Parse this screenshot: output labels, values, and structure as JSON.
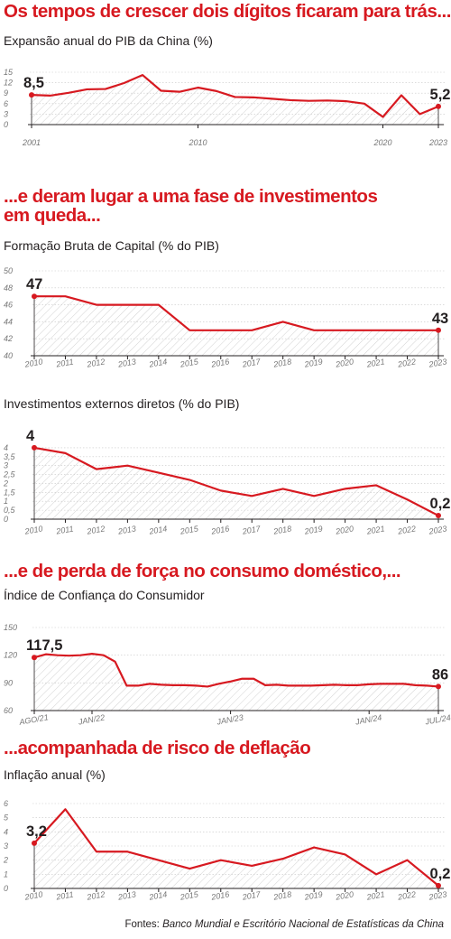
{
  "headlines": {
    "h1": "Os tempos de crescer dois dígitos ficaram para trás...",
    "h2a": "...e deram lugar a uma fase de investimentos",
    "h2b": "em queda...",
    "h3": "...e de perda de força no consumo doméstico,...",
    "h4": "...acompanhada de risco de deflação"
  },
  "source": {
    "prefix": "Fontes: ",
    "names": "Banco Mundial e Escritório Nacional de Estatísticas da China"
  },
  "colors": {
    "line": "#d71920",
    "axis": "#231f20",
    "grid": "#c8c8c8",
    "hatch": "#d2d2d2"
  },
  "chart_data": [
    {
      "type": "area",
      "title": "Expansão anual do PIB da China (%)",
      "x": [
        2001,
        2002,
        2003,
        2004,
        2005,
        2006,
        2007,
        2008,
        2009,
        2010,
        2011,
        2012,
        2013,
        2014,
        2015,
        2016,
        2017,
        2018,
        2019,
        2020,
        2021,
        2022,
        2023
      ],
      "values": [
        8.5,
        8.3,
        9.1,
        10.1,
        10.2,
        11.9,
        14.2,
        9.7,
        9.4,
        10.6,
        9.6,
        7.9,
        7.8,
        7.4,
        7.0,
        6.8,
        6.9,
        6.7,
        6.0,
        2.2,
        8.4,
        3.0,
        5.2
      ],
      "x_tick_labels": [
        "2001",
        "2010",
        "2020",
        "2023"
      ],
      "y_ticks": [
        "0",
        "3",
        "6",
        "9",
        "12",
        "15"
      ],
      "ylim": [
        0,
        15
      ],
      "start_label": "8,5",
      "end_label": "5,2",
      "grid": true
    },
    {
      "type": "area",
      "title": "Formação Bruta de Capital (% do PIB)",
      "x": [
        2010,
        2011,
        2012,
        2013,
        2014,
        2015,
        2016,
        2017,
        2018,
        2019,
        2020,
        2021,
        2022,
        2023
      ],
      "values": [
        47,
        47,
        46,
        46,
        46,
        43,
        43,
        43,
        44,
        43,
        43,
        43,
        43,
        43
      ],
      "x_tick_labels": [
        "2010",
        "2011",
        "2012",
        "2013",
        "2014",
        "2015",
        "2016",
        "2017",
        "2018",
        "2019",
        "2020",
        "2021",
        "2022",
        "2023"
      ],
      "y_ticks": [
        "40",
        "42",
        "44",
        "46",
        "48",
        "50"
      ],
      "ylim": [
        40,
        50
      ],
      "start_label": "47",
      "end_label": "43",
      "grid": true
    },
    {
      "type": "area",
      "title": "Investimentos externos diretos (% do PIB)",
      "x": [
        2010,
        2011,
        2012,
        2013,
        2014,
        2015,
        2016,
        2017,
        2018,
        2019,
        2020,
        2021,
        2022,
        2023
      ],
      "values": [
        4.0,
        3.7,
        2.8,
        3.0,
        2.6,
        2.2,
        1.6,
        1.3,
        1.7,
        1.3,
        1.7,
        1.9,
        1.1,
        0.2
      ],
      "x_tick_labels": [
        "2010",
        "2011",
        "2012",
        "2013",
        "2014",
        "2015",
        "2016",
        "2017",
        "2018",
        "2019",
        "2020",
        "2021",
        "2022",
        "2023"
      ],
      "y_ticks": [
        "0",
        "0,5",
        "1",
        "1,5",
        "2",
        "2,5",
        "3",
        "3,5",
        "4"
      ],
      "ylim": [
        0,
        4.3
      ],
      "start_label": "4",
      "end_label": "0,2",
      "grid": true
    },
    {
      "type": "area",
      "title": "Índice de Confiança do Consumidor",
      "x": [
        "AGO/21",
        "SET/21",
        "OUT/21",
        "NOV/21",
        "DEZ/21",
        "JAN/22",
        "FEV/22",
        "MAR/22",
        "ABR/22",
        "MAI/22",
        "JUN/22",
        "JUL/22",
        "AGO/22",
        "SET/22",
        "OUT/22",
        "NOV/22",
        "DEZ/22",
        "JAN/23",
        "FEV/23",
        "MAR/23",
        "ABR/23",
        "MAI/23",
        "JUN/23",
        "JUL/23",
        "AGO/23",
        "SET/23",
        "OUT/23",
        "NOV/23",
        "DEZ/23",
        "JAN/24",
        "FEV/24",
        "MAR/24",
        "ABR/24",
        "MAI/24",
        "JUN/24",
        "JUL/24"
      ],
      "values": [
        117.5,
        121,
        120,
        119.5,
        120,
        121.5,
        120,
        113,
        87,
        87,
        89,
        88,
        87.5,
        87.5,
        87,
        86,
        89,
        91.5,
        94.5,
        94.5,
        87.5,
        88,
        87,
        87,
        87,
        87.5,
        88,
        87.5,
        87.5,
        88.5,
        89,
        89,
        89,
        87.5,
        87,
        86
      ],
      "x_tick_labels": [
        {
          "index": 0,
          "label": "AGO/21"
        },
        {
          "index": 5,
          "label": "JAN/22"
        },
        {
          "index": 17,
          "label": "JAN/23"
        },
        {
          "index": 29,
          "label": "JAN/24"
        },
        {
          "index": 35,
          "label": "JUL/24"
        }
      ],
      "y_ticks": [
        "60",
        "90",
        "120",
        "150"
      ],
      "ylim": [
        60,
        150
      ],
      "start_label": "117,5",
      "end_label": "86",
      "grid": true
    },
    {
      "type": "area",
      "title": "Inflação anual (%)",
      "x": [
        2010,
        2011,
        2012,
        2013,
        2014,
        2015,
        2016,
        2017,
        2018,
        2019,
        2020,
        2021,
        2022,
        2023
      ],
      "values": [
        3.2,
        5.6,
        2.6,
        2.6,
        2.0,
        1.4,
        2.0,
        1.6,
        2.1,
        2.9,
        2.4,
        1.0,
        2.0,
        0.2
      ],
      "x_tick_labels": [
        "2010",
        "2011",
        "2012",
        "2013",
        "2014",
        "2015",
        "2016",
        "2017",
        "2018",
        "2019",
        "2020",
        "2021",
        "2022",
        "2023"
      ],
      "y_ticks": [
        "0",
        "1",
        "2",
        "3",
        "4",
        "5",
        "6"
      ],
      "ylim": [
        0,
        6
      ],
      "start_label": "3,2",
      "end_label": "0,2",
      "grid": true
    }
  ]
}
